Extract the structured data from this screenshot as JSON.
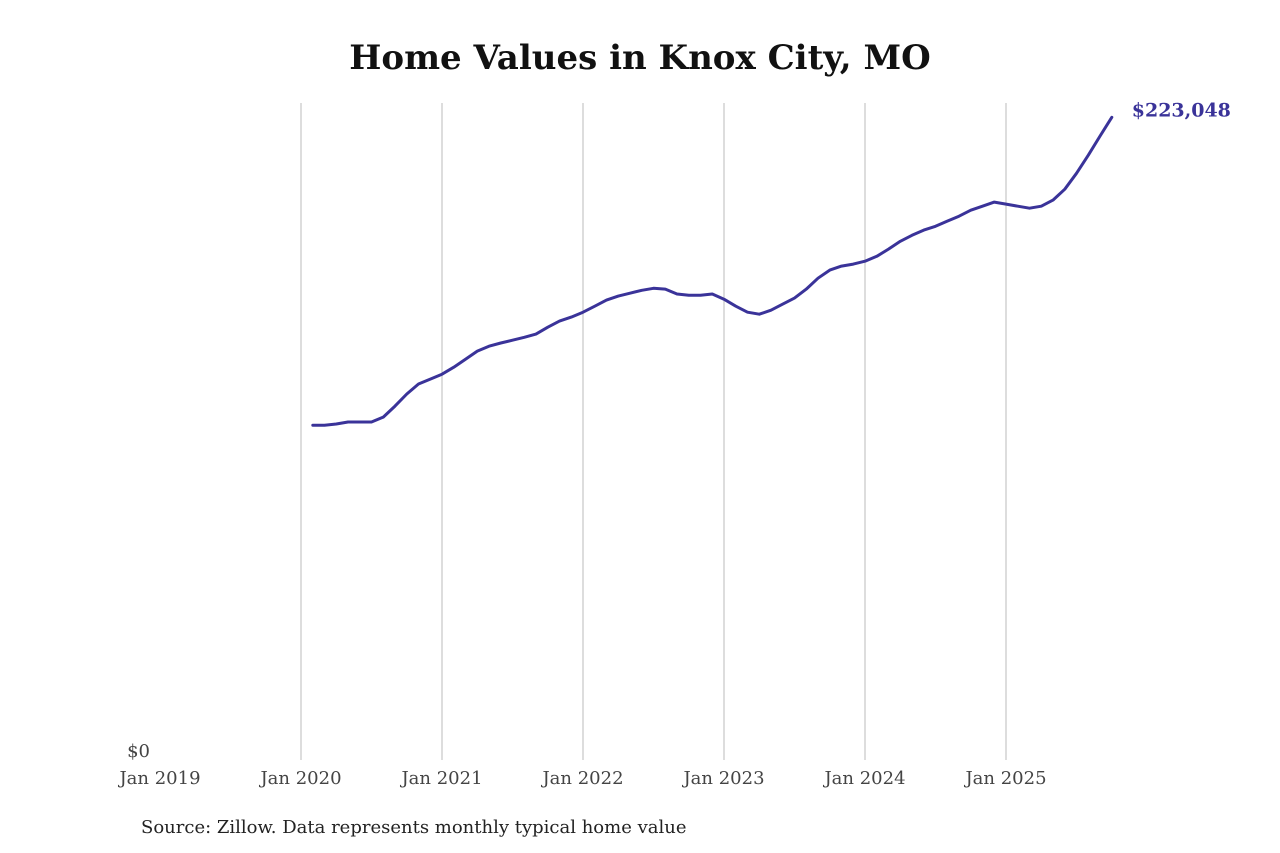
{
  "chart_data": {
    "type": "line",
    "title": "Home Values in Knox City, MO",
    "source": "Source: Zillow. Data represents monthly typical home value",
    "xlabel": "",
    "ylabel": "",
    "x_tick_labels": [
      "Jan 2019",
      "Jan 2020",
      "Jan 2021",
      "Jan 2022",
      "Jan 2023",
      "Jan 2024",
      "Jan 2025"
    ],
    "y_tick_labels": [
      "$0"
    ],
    "ylim": [
      0,
      228000
    ],
    "grid": "vertical at yearly ticks",
    "start_month": "Feb 2020",
    "end_month": "Oct 2025",
    "end_label": "$223,048",
    "line_color": "#3a3399",
    "series": [
      {
        "name": "Typical home value",
        "values": [
          116200,
          116200,
          116600,
          117300,
          117300,
          117300,
          119000,
          122800,
          127000,
          130500,
          132200,
          133900,
          136300,
          139100,
          141900,
          143600,
          144700,
          145700,
          146700,
          147800,
          150200,
          152300,
          153700,
          155400,
          157500,
          159600,
          161000,
          162000,
          163000,
          163700,
          163400,
          161700,
          161300,
          161300,
          161700,
          159900,
          157500,
          155400,
          154700,
          156100,
          158200,
          160300,
          163400,
          167200,
          170000,
          171400,
          172100,
          173100,
          174800,
          177300,
          180000,
          182100,
          183900,
          185200,
          187000,
          188700,
          190800,
          192200,
          193600,
          192900,
          192200,
          191500,
          192200,
          194300,
          198100,
          203600,
          209900,
          216500,
          223048
        ]
      }
    ]
  }
}
